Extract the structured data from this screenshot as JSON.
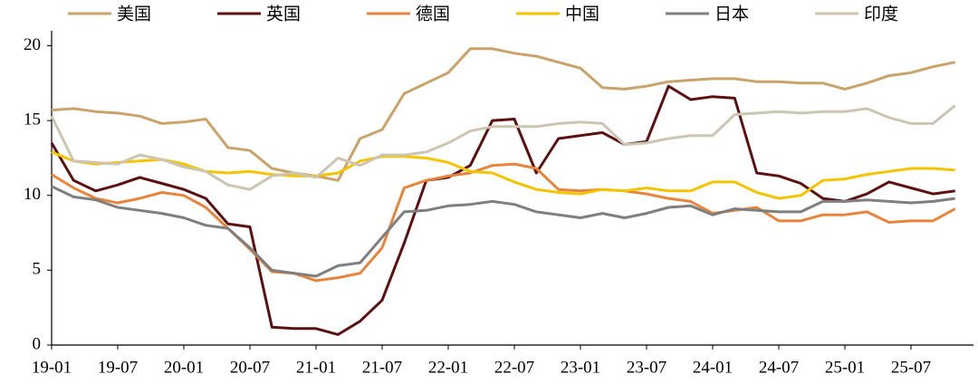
{
  "chart_data": {
    "type": "line",
    "categories": [
      "19-01",
      null,
      null,
      "19-07",
      null,
      null,
      "20-01",
      null,
      null,
      "20-07",
      null,
      null,
      "21-01",
      null,
      null,
      "21-07",
      null,
      null,
      "22-01",
      null,
      null,
      "22-07",
      null,
      null,
      "23-01",
      null,
      null,
      "23-07",
      null,
      null,
      "24-01",
      null,
      null,
      "24-07",
      null,
      null,
      "25-01",
      null,
      null,
      "25-07",
      null,
      null
    ],
    "series": [
      {
        "name": "美国",
        "color": "#C9A36A",
        "values": [
          15.7,
          15.8,
          15.6,
          15.5,
          15.3,
          14.8,
          14.9,
          15.1,
          13.2,
          13.0,
          11.8,
          11.5,
          11.3,
          11.0,
          13.8,
          14.4,
          16.8,
          17.5,
          18.2,
          19.8,
          19.8,
          19.5,
          19.3,
          18.9,
          18.5,
          17.2,
          17.1,
          17.3,
          17.6,
          17.7,
          17.8,
          17.8,
          17.6,
          17.6,
          17.5,
          17.5,
          17.1,
          17.5,
          18.0,
          18.2,
          18.6,
          18.9
        ]
      },
      {
        "name": "英国",
        "color": "#5C1010",
        "values": [
          13.5,
          11.0,
          10.3,
          10.7,
          11.2,
          10.8,
          10.4,
          9.8,
          8.1,
          7.9,
          1.2,
          1.1,
          1.1,
          0.7,
          1.6,
          3.0,
          6.8,
          11.0,
          11.2,
          12.0,
          15.0,
          15.1,
          11.5,
          13.8,
          14.0,
          14.2,
          13.4,
          13.6,
          17.3,
          16.4,
          16.6,
          16.5,
          11.5,
          11.3,
          10.8,
          9.8,
          9.6,
          10.1,
          10.9,
          10.5,
          10.1,
          10.3
        ]
      },
      {
        "name": "德国",
        "color": "#E8843C",
        "values": [
          11.4,
          10.5,
          9.8,
          9.5,
          9.8,
          10.2,
          10.0,
          9.2,
          7.8,
          6.4,
          4.9,
          4.8,
          4.3,
          4.5,
          4.8,
          6.5,
          10.5,
          11.0,
          11.3,
          11.5,
          12.0,
          12.1,
          11.8,
          10.4,
          10.3,
          10.4,
          10.3,
          10.1,
          9.8,
          9.6,
          8.8,
          9.0,
          9.2,
          8.3,
          8.3,
          8.7,
          8.7,
          8.9,
          8.2,
          8.3,
          8.3,
          9.1
        ]
      },
      {
        "name": "中国",
        "color": "#F5C400",
        "values": [
          12.9,
          12.3,
          12.1,
          12.2,
          12.3,
          12.4,
          12.1,
          11.6,
          11.5,
          11.6,
          11.4,
          11.3,
          11.3,
          11.5,
          12.3,
          12.6,
          12.6,
          12.5,
          12.2,
          11.6,
          11.5,
          10.9,
          10.4,
          10.2,
          10.1,
          10.4,
          10.3,
          10.5,
          10.3,
          10.3,
          10.9,
          10.9,
          10.2,
          9.8,
          10.0,
          11.0,
          11.1,
          11.4,
          11.6,
          11.8,
          11.8,
          11.7
        ]
      },
      {
        "name": "日本",
        "color": "#7F7F7F",
        "values": [
          10.6,
          9.9,
          9.7,
          9.2,
          9.0,
          8.8,
          8.5,
          8.0,
          7.8,
          6.5,
          5.0,
          4.8,
          4.6,
          5.3,
          5.5,
          7.2,
          8.9,
          9.0,
          9.3,
          9.4,
          9.6,
          9.4,
          8.9,
          8.7,
          8.5,
          8.8,
          8.5,
          8.8,
          9.2,
          9.3,
          8.7,
          9.1,
          9.0,
          8.9,
          8.9,
          9.6,
          9.6,
          9.7,
          9.6,
          9.5,
          9.6,
          9.8
        ]
      },
      {
        "name": "印度",
        "color": "#CBC5B2",
        "values": [
          15.3,
          12.3,
          12.2,
          12.1,
          12.7,
          12.4,
          11.9,
          11.6,
          10.7,
          10.4,
          11.3,
          11.5,
          11.2,
          12.5,
          12.0,
          12.7,
          12.7,
          12.9,
          13.5,
          14.3,
          14.6,
          14.6,
          14.6,
          14.8,
          14.9,
          14.8,
          13.4,
          13.5,
          13.8,
          14.0,
          14.0,
          15.4,
          15.5,
          15.6,
          15.5,
          15.6,
          15.6,
          15.8,
          15.2,
          14.8,
          14.8,
          16.0
        ]
      }
    ],
    "ylim": [
      0,
      21
    ],
    "yticks": [
      0,
      5,
      10,
      15,
      20
    ],
    "grid": false
  }
}
